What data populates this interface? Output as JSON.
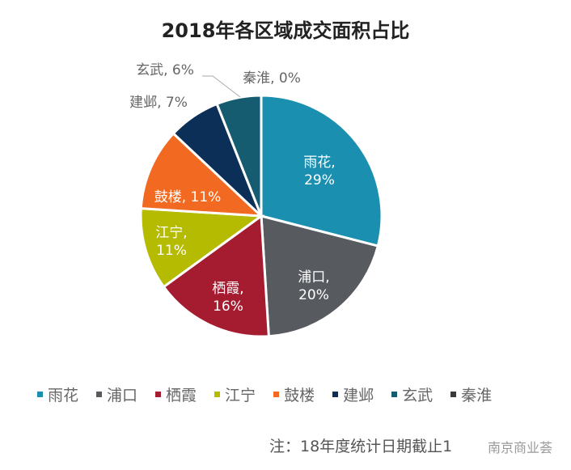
{
  "chart_data": {
    "type": "pie",
    "title": "2018年各区域成交面积占比",
    "unit": "%",
    "legend_position": "bottom",
    "slices": [
      {
        "name": "雨花",
        "value": 29,
        "label": "雨花,",
        "pct": "29%",
        "color": "#1a8fb0"
      },
      {
        "name": "浦口",
        "value": 20,
        "label": "浦口,",
        "pct": "20%",
        "color": "#575b60"
      },
      {
        "name": "栖霞",
        "value": 16,
        "label": "栖霞,",
        "pct": "16%",
        "color": "#a51b30"
      },
      {
        "name": "江宁",
        "value": 11,
        "label": "江宁,",
        "pct": "11%",
        "color": "#b4bb00"
      },
      {
        "name": "鼓楼",
        "value": 11,
        "label": "鼓楼, 11%",
        "pct": "",
        "color": "#f26a22"
      },
      {
        "name": "建邺",
        "value": 7,
        "label": "建邺, 7%",
        "pct": "",
        "color": "#0c2f57"
      },
      {
        "name": "玄武",
        "value": 6,
        "label": "玄武, 6%",
        "pct": "",
        "color": "#165c70"
      },
      {
        "name": "秦淮",
        "value": 0,
        "label": "秦淮, 0%",
        "pct": "",
        "color": "#3a3a3a"
      }
    ]
  },
  "note": "注：18年度统计日期截止1",
  "watermark": "南京商业荟"
}
